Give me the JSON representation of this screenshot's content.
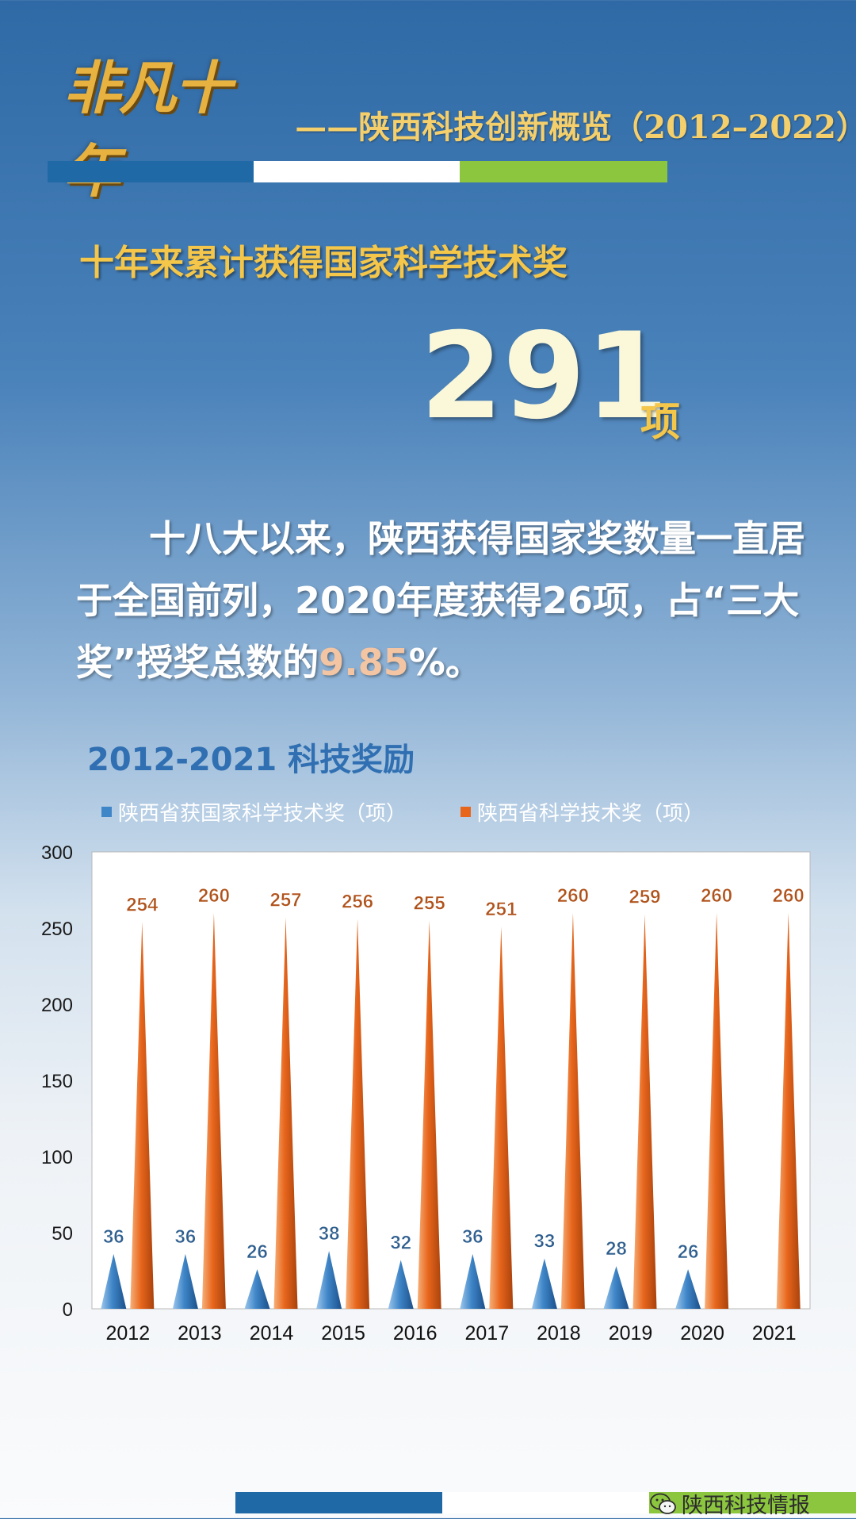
{
  "header": {
    "logo_text": "非凡十年",
    "subtitle": "——陕西科技创新概览（2012–2022）",
    "bar_colors": [
      "#1f6aa6",
      "#ffffff",
      "#8cc63f"
    ]
  },
  "section_title": "十年来累计获得国家科学技术奖",
  "highlight": {
    "number": "291",
    "unit": "项"
  },
  "paragraph": {
    "text_before": "十八大以来，陕西获得国家奖数量一直居于全国前列，2020年度获得26项，占“三大奖”授奖总数的",
    "highlight_value": "9.85",
    "text_after": "%。"
  },
  "chart_title": "2012-2021 科技奖励",
  "chart_data": {
    "type": "bar",
    "categories": [
      "2012",
      "2013",
      "2014",
      "2015",
      "2016",
      "2017",
      "2018",
      "2019",
      "2020",
      "2021"
    ],
    "series": [
      {
        "name": "陕西省获国家科学技术奖（项）",
        "values": [
          36,
          36,
          26,
          38,
          32,
          36,
          33,
          28,
          26,
          null
        ],
        "color": "#3f86c8",
        "label_color": "#2f5f8f"
      },
      {
        "name": "陕西省科学技术奖（项）",
        "values": [
          254,
          260,
          257,
          256,
          255,
          251,
          260,
          259,
          260,
          260
        ],
        "color": "#e8661c",
        "label_color": "#b0521b"
      }
    ],
    "ylim": [
      0,
      300
    ],
    "yticks": [
      0,
      50,
      100,
      150,
      200,
      250,
      300
    ],
    "grid": false,
    "legend_position": "top-left",
    "mark_shape": "cone"
  },
  "footer": {
    "account_name": "陕西科技情报",
    "icon": "wechat-icon",
    "bar_colors": [
      "#1f6aa6",
      "#ffffff",
      "#8cc63f"
    ]
  }
}
